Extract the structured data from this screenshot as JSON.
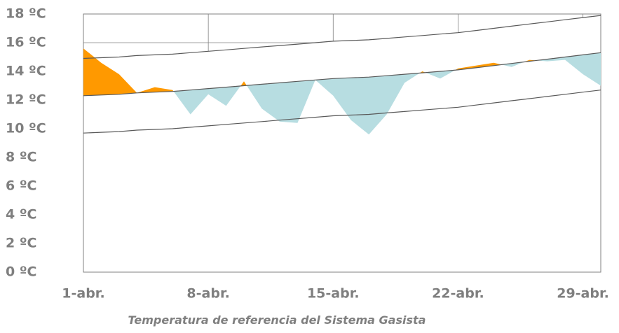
{
  "chart_data": {
    "type": "band-area",
    "title": "Temperatura de referencia del Sistema Gasista",
    "x": [
      1,
      2,
      3,
      4,
      5,
      6,
      7,
      8,
      9,
      10,
      11,
      12,
      13,
      14,
      15,
      16,
      17,
      18,
      19,
      20,
      21,
      22,
      23,
      24,
      25,
      26,
      27,
      28,
      29,
      30
    ],
    "series": [
      {
        "color": "#ff9900",
        "values": [
          15.6,
          14.6,
          13.8,
          12.5,
          12.9,
          12.7,
          11.0,
          12.4,
          11.6,
          13.3,
          11.4,
          10.5,
          10.4,
          13.4,
          12.3,
          10.6,
          9.6,
          11.0,
          13.2,
          14.0,
          13.5,
          14.2,
          14.4,
          14.6,
          14.3,
          14.8,
          14.7,
          14.8,
          13.8,
          13.0
        ]
      },
      {
        "color": "#595959",
        "values": [
          12.3,
          12.35,
          12.4,
          12.5,
          12.55,
          12.6,
          12.7,
          12.8,
          12.9,
          13.0,
          13.1,
          13.2,
          13.3,
          13.4,
          13.5,
          13.55,
          13.6,
          13.7,
          13.8,
          13.9,
          14.0,
          14.1,
          14.25,
          14.4,
          14.55,
          14.7,
          14.85,
          15.0,
          15.15,
          15.3
        ]
      },
      {
        "color": "#595959",
        "values": [
          14.9,
          14.95,
          15.0,
          15.1,
          15.15,
          15.2,
          15.3,
          15.4,
          15.5,
          15.6,
          15.7,
          15.8,
          15.9,
          16.0,
          16.1,
          16.15,
          16.2,
          16.3,
          16.4,
          16.5,
          16.6,
          16.7,
          16.85,
          17.0,
          17.15,
          17.3,
          17.45,
          17.6,
          17.75,
          17.9
        ]
      },
      {
        "color": "#595959",
        "values": [
          9.7,
          9.75,
          9.8,
          9.9,
          9.95,
          10.0,
          10.1,
          10.2,
          10.3,
          10.4,
          10.5,
          10.6,
          10.7,
          10.8,
          10.9,
          10.95,
          11.0,
          11.1,
          11.2,
          11.3,
          11.4,
          11.5,
          11.65,
          11.8,
          11.95,
          12.1,
          12.25,
          12.4,
          12.55,
          12.7
        ]
      }
    ],
    "below_color": "#b7dde1",
    "xlim": [
      1,
      30
    ],
    "xticks": [
      {
        "value": 1,
        "label": "1-abr."
      },
      {
        "value": 8,
        "label": "8-abr."
      },
      {
        "value": 15,
        "label": "15-abr."
      },
      {
        "value": 22,
        "label": "22-abr."
      },
      {
        "value": 29,
        "label": "29-abr."
      }
    ],
    "ylim": [
      0,
      18
    ],
    "yticks": [
      {
        "value": 0,
        "label": "0 ºC"
      },
      {
        "value": 2,
        "label": "2 ºC"
      },
      {
        "value": 4,
        "label": "4 ºC"
      },
      {
        "value": 6,
        "label": "6 ºC"
      },
      {
        "value": 8,
        "label": "8 ºC"
      },
      {
        "value": 10,
        "label": "10 ºC"
      },
      {
        "value": 12,
        "label": "12 ºC"
      },
      {
        "value": 14,
        "label": "14 ºC"
      },
      {
        "value": 16,
        "label": "16 ºC"
      },
      {
        "value": 18,
        "label": "18 ºC"
      }
    ],
    "grid": true
  }
}
